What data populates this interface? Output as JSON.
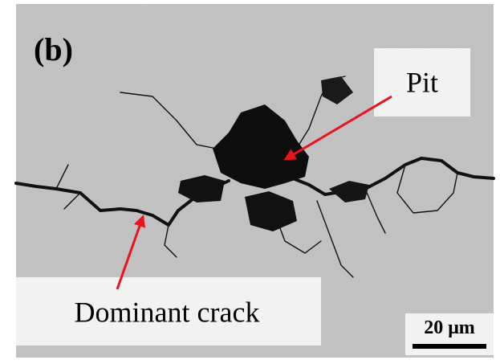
{
  "panel_label": "(b)",
  "annotations": [
    {
      "label": "Pit"
    },
    {
      "label": "Dominant crack"
    }
  ],
  "scale_bar": {
    "label": "20 μm"
  }
}
